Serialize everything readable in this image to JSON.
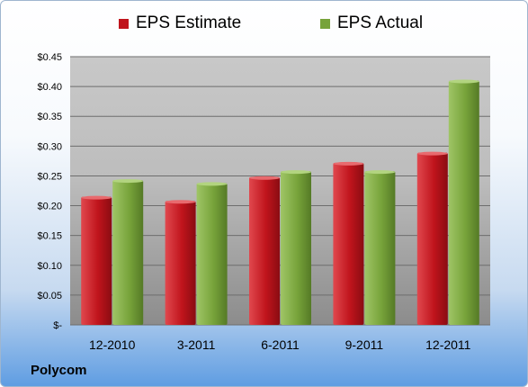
{
  "chart_data": {
    "type": "bar",
    "categories": [
      "12-2010",
      "3-2011",
      "6-2011",
      "9-2011",
      "12-2011"
    ],
    "series": [
      {
        "name": "EPS Estimate",
        "color": "#c0141c",
        "values": [
          0.215,
          0.208,
          0.248,
          0.272,
          0.289
        ]
      },
      {
        "name": "EPS Actual",
        "color": "#77a33a",
        "values": [
          0.243,
          0.238,
          0.258,
          0.258,
          0.41
        ]
      }
    ],
    "ylim": [
      0,
      0.45
    ],
    "yticks": [
      0,
      0.05,
      0.1,
      0.15,
      0.2,
      0.25,
      0.3,
      0.35,
      0.4,
      0.45
    ],
    "yticklabels": [
      "$-",
      "$0.05",
      "$0.10",
      "$0.15",
      "$0.20",
      "$0.25",
      "$0.30",
      "$0.35",
      "$0.40",
      "$0.45"
    ],
    "grid": true,
    "legend_position": "top"
  },
  "footer": {
    "company": "Polycom"
  }
}
